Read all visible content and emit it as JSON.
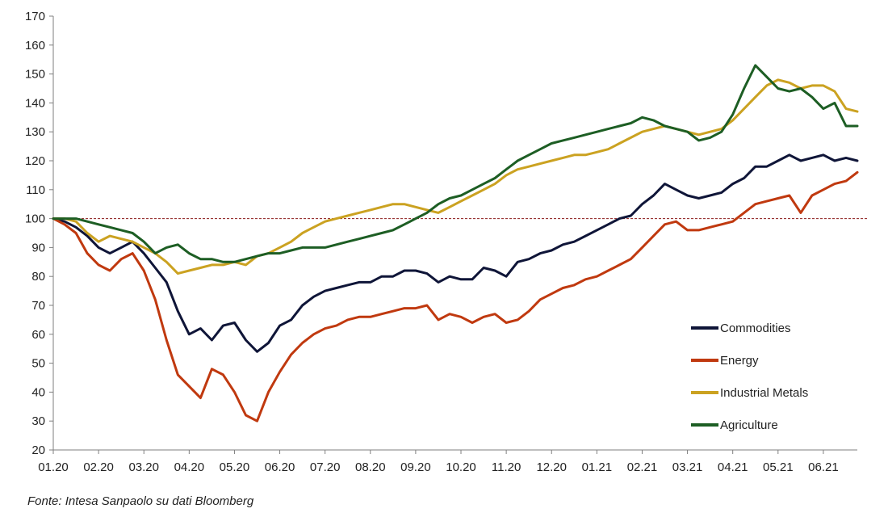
{
  "chart_data": {
    "type": "line",
    "title": "",
    "xlabel": "",
    "ylabel": "",
    "x_ticks": [
      "01.20",
      "02.20",
      "03.20",
      "04.20",
      "05.20",
      "06.20",
      "07.20",
      "08.20",
      "09.20",
      "10.20",
      "11.20",
      "12.20",
      "01.21",
      "02.21",
      "03.21",
      "04.21",
      "05.21",
      "06.21"
    ],
    "x_range": [
      0,
      17.75
    ],
    "ylim": [
      20,
      170
    ],
    "y_ticks": [
      20,
      30,
      40,
      50,
      60,
      70,
      80,
      90,
      100,
      110,
      120,
      130,
      140,
      150,
      160,
      170
    ],
    "reference_line": 100,
    "grid": false,
    "legend_position": "bottom-right",
    "x": [
      0,
      0.25,
      0.5,
      0.75,
      1,
      1.25,
      1.5,
      1.75,
      2,
      2.25,
      2.5,
      2.75,
      3,
      3.25,
      3.5,
      3.75,
      4,
      4.25,
      4.5,
      4.75,
      5,
      5.25,
      5.5,
      5.75,
      6,
      6.25,
      6.5,
      6.75,
      7,
      7.25,
      7.5,
      7.75,
      8,
      8.25,
      8.5,
      8.75,
      9,
      9.25,
      9.5,
      9.75,
      10,
      10.25,
      10.5,
      10.75,
      11,
      11.25,
      11.5,
      11.75,
      12,
      12.25,
      12.5,
      12.75,
      13,
      13.25,
      13.5,
      13.75,
      14,
      14.25,
      14.5,
      14.75,
      15,
      15.25,
      15.5,
      15.75,
      16,
      16.25,
      16.5,
      16.75,
      17,
      17.25,
      17.5,
      17.75
    ],
    "series": [
      {
        "name": "Commodities",
        "color": "#0f1538",
        "values": [
          100,
          99,
          97,
          94,
          90,
          88,
          90,
          92,
          88,
          83,
          78,
          68,
          60,
          62,
          58,
          63,
          64,
          58,
          54,
          57,
          63,
          65,
          70,
          73,
          75,
          76,
          77,
          78,
          78,
          80,
          80,
          82,
          82,
          81,
          78,
          80,
          79,
          79,
          83,
          82,
          80,
          85,
          86,
          88,
          89,
          91,
          92,
          94,
          96,
          98,
          100,
          101,
          105,
          108,
          112,
          110,
          108,
          107,
          108,
          109,
          112,
          114,
          118,
          118,
          120,
          122,
          120,
          121,
          122,
          120,
          121,
          120
        ]
      },
      {
        "name": "Energy",
        "color": "#c0390f",
        "values": [
          100,
          98,
          95,
          88,
          84,
          82,
          86,
          88,
          82,
          72,
          58,
          46,
          42,
          38,
          48,
          46,
          40,
          32,
          30,
          40,
          47,
          53,
          57,
          60,
          62,
          63,
          65,
          66,
          66,
          67,
          68,
          69,
          69,
          70,
          65,
          67,
          66,
          64,
          66,
          67,
          64,
          65,
          68,
          72,
          74,
          76,
          77,
          79,
          80,
          82,
          84,
          86,
          90,
          94,
          98,
          99,
          96,
          96,
          97,
          98,
          99,
          102,
          105,
          106,
          107,
          108,
          102,
          108,
          110,
          112,
          113,
          116
        ]
      },
      {
        "name": "Industrial Metals",
        "color": "#cba221",
        "values": [
          100,
          100,
          99,
          95,
          92,
          94,
          93,
          92,
          90,
          88,
          85,
          81,
          82,
          83,
          84,
          84,
          85,
          84,
          87,
          88,
          90,
          92,
          95,
          97,
          99,
          100,
          101,
          102,
          103,
          104,
          105,
          105,
          104,
          103,
          102,
          104,
          106,
          108,
          110,
          112,
          115,
          117,
          118,
          119,
          120,
          121,
          122,
          122,
          123,
          124,
          126,
          128,
          130,
          131,
          132,
          131,
          130,
          129,
          130,
          131,
          134,
          138,
          142,
          146,
          148,
          147,
          145,
          146,
          146,
          144,
          138,
          137
        ]
      },
      {
        "name": "Agriculture",
        "color": "#1d5e24",
        "values": [
          100,
          100,
          100,
          99,
          98,
          97,
          96,
          95,
          92,
          88,
          90,
          91,
          88,
          86,
          86,
          85,
          85,
          86,
          87,
          88,
          88,
          89,
          90,
          90,
          90,
          91,
          92,
          93,
          94,
          95,
          96,
          98,
          100,
          102,
          105,
          107,
          108,
          110,
          112,
          114,
          117,
          120,
          122,
          124,
          126,
          127,
          128,
          129,
          130,
          131,
          132,
          133,
          135,
          134,
          132,
          131,
          130,
          127,
          128,
          130,
          136,
          145,
          153,
          149,
          145,
          144,
          145,
          142,
          138,
          140,
          132,
          132
        ]
      }
    ]
  },
  "source": "Fonte: Intesa Sanpaolo su dati Bloomberg"
}
